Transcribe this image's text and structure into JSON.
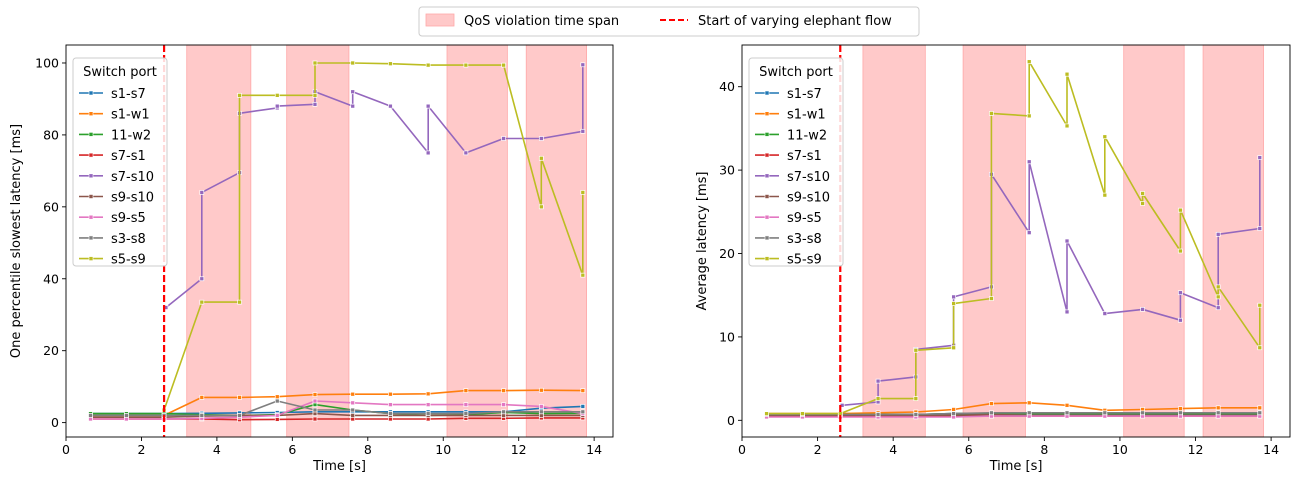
{
  "figure_legend": {
    "items": [
      {
        "label": "QoS violation time span",
        "color": "#ffc9c9"
      },
      {
        "label": "Start of varying elephant flow",
        "color": "#ff0000"
      }
    ]
  },
  "colors": {
    "s1-s7": "#1f77b4",
    "s1-w1": "#ff7f0e",
    "11-w2": "#2ca02c",
    "s7-s1": "#d62728",
    "s7-s10": "#9467bd",
    "s9-s10": "#8c564b",
    "s9-s5": "#e377c2",
    "s3-s8": "#7f7f7f",
    "s5-s9": "#bcbd22",
    "violation": "#ff9f9f",
    "elephant": "#ff0000"
  },
  "chart_data": [
    {
      "type": "line",
      "xlabel": "Time [s]",
      "ylabel": "One percentile slowest latency [ms]",
      "xlim": [
        0,
        14.5
      ],
      "ylim": [
        -4,
        105
      ],
      "xticks": [
        0,
        2,
        4,
        6,
        8,
        10,
        12,
        14
      ],
      "yticks": [
        0,
        20,
        40,
        60,
        80,
        100
      ],
      "legend": {
        "title": "Switch port",
        "position": "upper-left"
      },
      "elephant_start": 2.6,
      "violation_spans": [
        [
          3.2,
          4.9
        ],
        [
          5.85,
          7.5
        ],
        [
          10.1,
          11.7
        ],
        [
          12.2,
          13.8
        ]
      ],
      "series": [
        {
          "name": "s1-s7",
          "x": [
            0.65,
            1.6,
            2.6,
            3.6,
            4.6,
            5.6,
            6.6,
            7.6,
            8.6,
            9.6,
            10.6,
            11.6,
            12.6,
            13.7
          ],
          "y": [
            2.5,
            2.5,
            2.5,
            2.6,
            2.7,
            2.8,
            3.0,
            3.0,
            3.0,
            3.0,
            3.0,
            3.0,
            4.0,
            4.5
          ]
        },
        {
          "name": "s1-w1",
          "x": [
            0.65,
            1.6,
            2.6,
            3.6,
            4.6,
            5.6,
            6.6,
            7.6,
            8.6,
            9.6,
            10.6,
            11.6,
            12.6,
            13.7
          ],
          "y": [
            2.0,
            2.0,
            2.0,
            7.0,
            7.0,
            7.2,
            7.8,
            7.9,
            7.9,
            8.0,
            8.9,
            8.9,
            9.0,
            8.9
          ]
        },
        {
          "name": "11-w2",
          "x": [
            0.65,
            1.6,
            2.6,
            3.6,
            4.6,
            5.6,
            6.6,
            7.6,
            8.6,
            9.6,
            10.6,
            11.6,
            12.6,
            13.7
          ],
          "y": [
            2.5,
            2.5,
            2.5,
            2.2,
            2.0,
            2.2,
            5.0,
            3.5,
            2.5,
            2.0,
            2.2,
            2.8,
            2.5,
            2.6
          ]
        },
        {
          "name": "s7-s1",
          "x": [
            0.65,
            1.6,
            2.6,
            3.6,
            4.6,
            5.6,
            6.6,
            7.6,
            8.6,
            9.6,
            10.6,
            11.6,
            12.6,
            13.7
          ],
          "y": [
            1.0,
            1.0,
            1.0,
            1.0,
            0.8,
            0.9,
            1.0,
            1.0,
            1.0,
            1.0,
            1.2,
            1.2,
            1.3,
            1.3
          ]
        },
        {
          "name": "s7-s10",
          "x": [
            2.65,
            3.6,
            3.6,
            4.6,
            4.6,
            5.6,
            5.6,
            6.6,
            6.6,
            7.6,
            7.6,
            8.6,
            9.6,
            9.6,
            10.6,
            11.6,
            12.6,
            13.7,
            13.7
          ],
          "y": [
            32.0,
            40.0,
            64.0,
            69.5,
            86.0,
            87.5,
            88.0,
            88.5,
            92.0,
            88.0,
            92.0,
            88.0,
            75.0,
            88.0,
            75.0,
            79.0,
            79.0,
            81.0,
            99.5
          ]
        },
        {
          "name": "s9-s10",
          "x": [
            0.65,
            1.6,
            2.6,
            3.6,
            4.6,
            5.6,
            6.6,
            7.6,
            8.6,
            9.6,
            10.6,
            11.6,
            12.6,
            13.7
          ],
          "y": [
            1.5,
            1.5,
            1.5,
            1.8,
            2.0,
            2.0,
            2.5,
            2.0,
            2.0,
            2.0,
            2.0,
            2.0,
            2.0,
            2.0
          ]
        },
        {
          "name": "s9-s5",
          "x": [
            0.65,
            1.6,
            2.6,
            3.6,
            4.6,
            5.6,
            6.6,
            7.6,
            8.6,
            9.6,
            10.6,
            11.6,
            12.6,
            13.7
          ],
          "y": [
            1.0,
            1.0,
            1.0,
            1.2,
            1.5,
            2.0,
            6.0,
            5.5,
            5.0,
            5.0,
            5.0,
            5.0,
            4.5,
            2.5
          ]
        },
        {
          "name": "s3-s8",
          "x": [
            0.65,
            1.6,
            2.6,
            3.6,
            4.6,
            5.6,
            6.6,
            7.6,
            8.6,
            9.6,
            10.6,
            11.6,
            12.6,
            13.7
          ],
          "y": [
            2.0,
            2.0,
            2.0,
            2.0,
            2.0,
            6.0,
            3.5,
            3.5,
            2.5,
            2.5,
            2.5,
            3.0,
            3.0,
            3.0
          ]
        },
        {
          "name": "s5-s9",
          "x": [
            2.6,
            3.6,
            4.6,
            4.6,
            5.6,
            6.6,
            6.6,
            7.6,
            8.6,
            9.6,
            10.6,
            11.6,
            12.6,
            12.6,
            13.7,
            13.7
          ],
          "y": [
            3.5,
            33.5,
            33.5,
            91.0,
            91.0,
            91.0,
            100.0,
            100.0,
            99.8,
            99.4,
            99.4,
            99.4,
            60.0,
            73.5,
            41.0,
            64.0
          ]
        }
      ]
    },
    {
      "type": "line",
      "xlabel": "Time [s]",
      "ylabel": "Average latency [ms]",
      "xlim": [
        0,
        14.5
      ],
      "ylim": [
        -2,
        45
      ],
      "xticks": [
        0,
        2,
        4,
        6,
        8,
        10,
        12,
        14
      ],
      "yticks": [
        0,
        10,
        20,
        30,
        40
      ],
      "legend": {
        "title": "Switch port",
        "position": "upper-left"
      },
      "elephant_start": 2.6,
      "violation_spans": [
        [
          3.2,
          4.85
        ],
        [
          5.85,
          7.5
        ],
        [
          10.1,
          11.7
        ],
        [
          12.2,
          13.8
        ]
      ],
      "series": [
        {
          "name": "s1-s7",
          "x": [
            0.65,
            1.6,
            2.6,
            3.6,
            4.6,
            5.6,
            6.6,
            7.6,
            8.6,
            9.6,
            10.6,
            11.6,
            12.6,
            13.7
          ],
          "y": [
            0.7,
            0.7,
            0.7,
            0.7,
            0.7,
            0.8,
            0.8,
            0.8,
            0.8,
            0.8,
            0.8,
            0.8,
            0.8,
            0.8
          ]
        },
        {
          "name": "s1-w1",
          "x": [
            0.65,
            1.6,
            2.6,
            3.6,
            4.6,
            5.6,
            6.6,
            7.6,
            8.6,
            9.6,
            10.6,
            11.6,
            12.6,
            13.7
          ],
          "y": [
            0.8,
            0.8,
            0.8,
            0.9,
            1.0,
            1.3,
            2.0,
            2.1,
            1.8,
            1.2,
            1.3,
            1.4,
            1.5,
            1.5
          ]
        },
        {
          "name": "11-w2",
          "x": [
            0.65,
            1.6,
            2.6,
            3.6,
            4.6,
            5.6,
            6.6,
            7.6,
            8.6,
            9.6,
            10.6,
            11.6,
            12.6,
            13.7
          ],
          "y": [
            0.7,
            0.7,
            0.7,
            0.7,
            0.7,
            0.8,
            0.8,
            0.8,
            0.8,
            0.8,
            0.8,
            0.8,
            0.8,
            0.8
          ]
        },
        {
          "name": "s7-s1",
          "x": [
            0.65,
            1.6,
            2.6,
            3.6,
            4.6,
            5.6,
            6.6,
            7.6,
            8.6,
            9.6,
            10.6,
            11.6,
            12.6,
            13.7
          ],
          "y": [
            0.5,
            0.5,
            0.5,
            0.5,
            0.5,
            0.5,
            0.5,
            0.5,
            0.5,
            0.5,
            0.5,
            0.5,
            0.5,
            0.5
          ]
        },
        {
          "name": "s7-s10",
          "x": [
            2.65,
            3.6,
            3.6,
            4.6,
            4.6,
            5.6,
            5.6,
            6.6,
            6.6,
            7.6,
            7.6,
            8.6,
            8.6,
            9.6,
            10.6,
            11.6,
            11.6,
            12.6,
            12.6,
            13.7,
            13.7
          ],
          "y": [
            1.8,
            2.2,
            4.7,
            5.2,
            8.5,
            9.0,
            14.8,
            16.0,
            29.5,
            22.5,
            31.0,
            13.0,
            21.5,
            12.8,
            13.3,
            12.0,
            15.3,
            13.5,
            22.3,
            23.0,
            31.5
          ]
        },
        {
          "name": "s9-s10",
          "x": [
            0.65,
            1.6,
            2.6,
            3.6,
            4.6,
            5.6,
            6.6,
            7.6,
            8.6,
            9.6,
            10.6,
            11.6,
            12.6,
            13.7
          ],
          "y": [
            0.6,
            0.6,
            0.6,
            0.6,
            0.6,
            0.6,
            0.7,
            0.6,
            0.6,
            0.6,
            0.6,
            0.6,
            0.6,
            0.6
          ]
        },
        {
          "name": "s9-s5",
          "x": [
            0.65,
            1.6,
            2.6,
            3.6,
            4.6,
            5.6,
            6.6,
            7.6,
            8.6,
            9.6,
            10.6,
            11.6,
            12.6,
            13.7
          ],
          "y": [
            0.4,
            0.4,
            0.4,
            0.4,
            0.4,
            0.4,
            0.5,
            0.5,
            0.5,
            0.5,
            0.5,
            0.5,
            0.5,
            0.5
          ]
        },
        {
          "name": "s3-s8",
          "x": [
            0.65,
            1.6,
            2.6,
            3.6,
            4.6,
            5.6,
            6.6,
            7.6,
            8.6,
            9.6,
            10.6,
            11.6,
            12.6,
            13.7
          ],
          "y": [
            0.7,
            0.7,
            0.7,
            0.7,
            0.7,
            0.8,
            0.9,
            0.9,
            0.9,
            0.9,
            0.9,
            0.9,
            0.9,
            0.9
          ]
        },
        {
          "name": "s5-s9",
          "x": [
            0.65,
            1.6,
            2.6,
            3.6,
            4.6,
            4.6,
            5.6,
            5.6,
            6.6,
            6.6,
            7.6,
            7.6,
            8.6,
            8.6,
            9.6,
            9.6,
            10.6,
            10.6,
            11.6,
            11.6,
            12.6,
            12.6,
            13.7,
            13.7
          ],
          "y": [
            0.8,
            0.8,
            0.8,
            2.6,
            2.6,
            8.4,
            8.7,
            14.0,
            14.6,
            36.8,
            36.5,
            43.0,
            35.3,
            41.5,
            27.0,
            34.0,
            26.0,
            27.2,
            20.3,
            25.2,
            14.8,
            16.0,
            8.7,
            13.8
          ]
        }
      ]
    }
  ]
}
